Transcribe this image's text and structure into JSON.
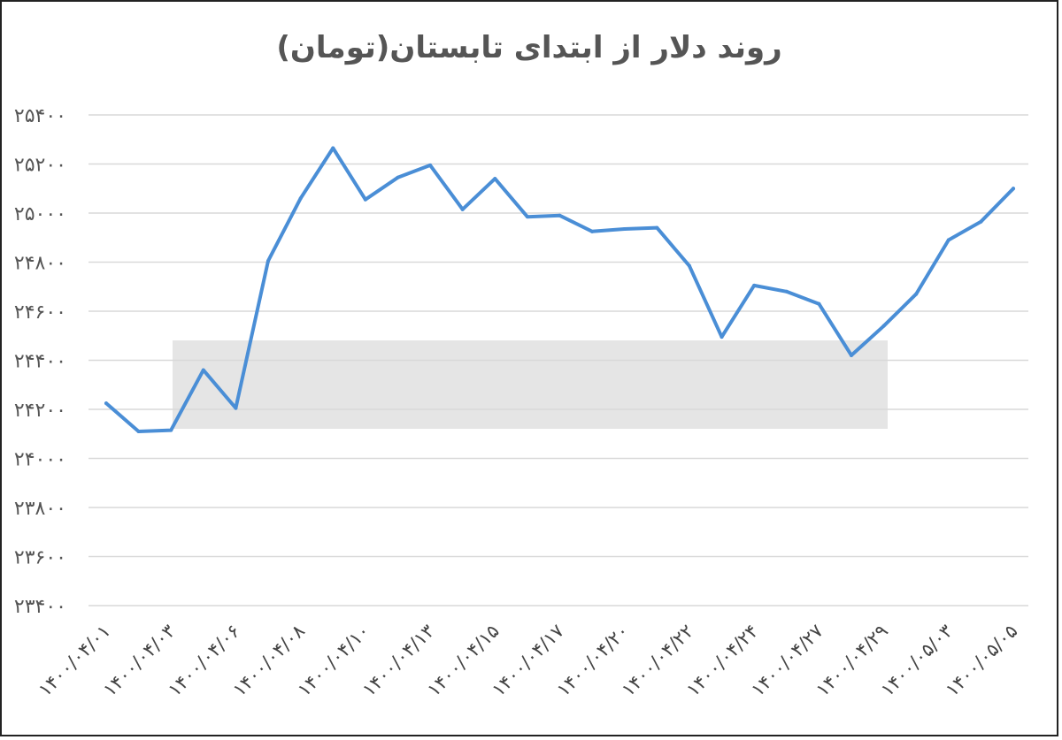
{
  "chart_data": {
    "type": "line",
    "title": "روند دلار از ابتدای تابستان(تومان)",
    "xlabel": "",
    "ylabel": "",
    "ylim": [
      23400,
      25400
    ],
    "yticks": [
      23400,
      23600,
      23800,
      24000,
      24200,
      24400,
      24600,
      24800,
      25000,
      25200,
      25400
    ],
    "ytick_labels": [
      "۲۳۴۰۰",
      "۲۳۶۰۰",
      "۲۳۸۰۰",
      "۲۴۰۰۰",
      "۲۴۲۰۰",
      "۲۴۴۰۰",
      "۲۴۶۰۰",
      "۲۴۸۰۰",
      "۲۵۰۰۰",
      "۲۵۲۰۰",
      "۲۵۴۰۰"
    ],
    "x_tick_labels": [
      "۱۴۰۰/۰۴/۰۱",
      "۱۴۰۰/۰۴/۰۳",
      "۱۴۰۰/۰۴/۰۶",
      "۱۴۰۰/۰۴/۰۸",
      "۱۴۰۰/۰۴/۱۰",
      "۱۴۰۰/۰۴/۱۳",
      "۱۴۰۰/۰۴/۱۵",
      "۱۴۰۰/۰۴/۱۷",
      "۱۴۰۰/۰۴/۲۰",
      "۱۴۰۰/۰۴/۲۲",
      "۱۴۰۰/۰۴/۲۴",
      "۱۴۰۰/۰۴/۲۷",
      "۱۴۰۰/۰۴/۲۹",
      "۱۴۰۰/۰۵/۰۳",
      "۱۴۰۰/۰۵/۰۵"
    ],
    "grid": true,
    "legend": "none",
    "series_color": "#4a8ed6",
    "series": [
      {
        "values": [
          24225,
          24110,
          24115,
          24360,
          24205,
          24805,
          25060,
          25265,
          25055,
          25145,
          25195,
          25015,
          25140,
          24985,
          24990,
          24925,
          24935,
          24940,
          24785,
          24495,
          24705,
          24680,
          24630,
          24420,
          24540,
          24670,
          24890,
          24965,
          25100
        ]
      }
    ]
  }
}
